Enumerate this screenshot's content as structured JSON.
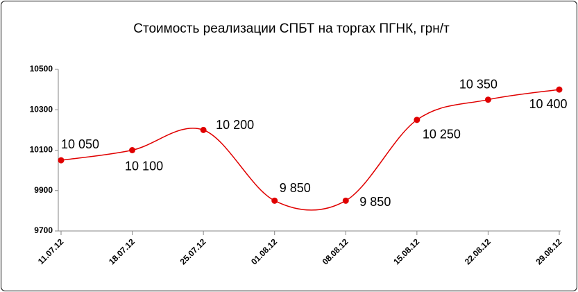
{
  "chart_data": {
    "type": "line",
    "title": "Стоимость реализации СПБТ на торгах ПГНК, грн/т",
    "categories": [
      "11.07.12",
      "18.07.12",
      "25.07.12",
      "01.08.12",
      "08.08.12",
      "15.08.12",
      "22.08.12",
      "29.08.12"
    ],
    "series": [
      {
        "name": "Стоимость",
        "color": "#e00000",
        "values": [
          10050,
          10100,
          10200,
          9850,
          9850,
          10250,
          10350,
          10400
        ],
        "value_labels": [
          "10 050",
          "10 100",
          "10 200",
          "9 850",
          "9 850",
          "10 250",
          "10 350",
          "10 400"
        ]
      }
    ],
    "ylim": [
      9700,
      10500
    ],
    "yticks": [
      9700,
      9900,
      10100,
      10300,
      10500
    ],
    "grid": false,
    "smooth": true
  }
}
